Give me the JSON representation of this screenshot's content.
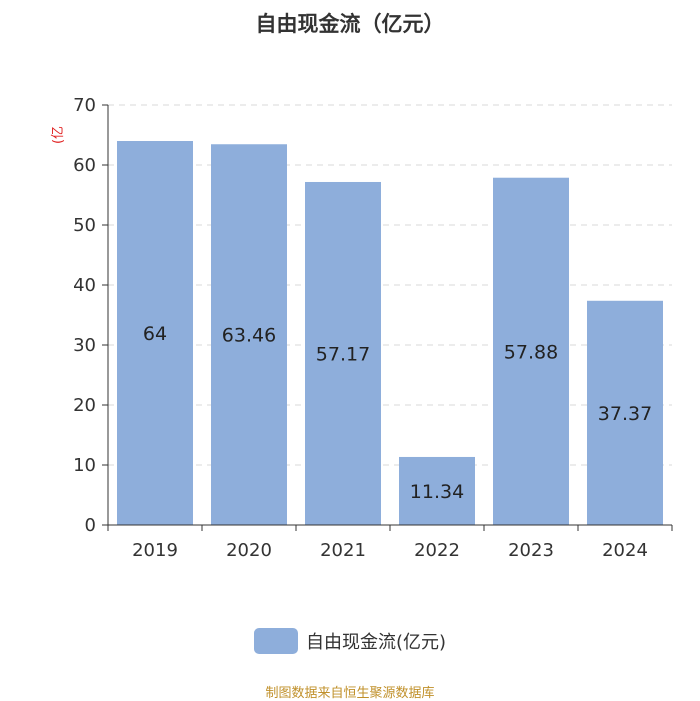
{
  "chart_data": {
    "type": "bar",
    "title": "自由现金流（亿元）",
    "ylabel": "(亿",
    "xlabel": "",
    "categories": [
      "2019",
      "2020",
      "2021",
      "2022",
      "2023",
      "2024"
    ],
    "series": [
      {
        "name": "自由现金流(亿元)",
        "values": [
          64,
          63.46,
          57.17,
          11.34,
          57.88,
          37.37
        ]
      }
    ],
    "data_labels": [
      "64",
      "63.46",
      "57.17",
      "11.34",
      "57.88",
      "37.37"
    ],
    "ylim": [
      0,
      70
    ],
    "yticks": [
      0,
      10,
      20,
      30,
      40,
      50,
      60,
      70
    ],
    "grid": true,
    "legend_position": "bottom",
    "colors": {
      "bar": "#8eaedb",
      "ylabel": "#e02020",
      "source": "#c0902a",
      "axis": "#333333",
      "grid": "#d8d8d8"
    }
  },
  "source_text": "制图数据来自恒生聚源数据库"
}
